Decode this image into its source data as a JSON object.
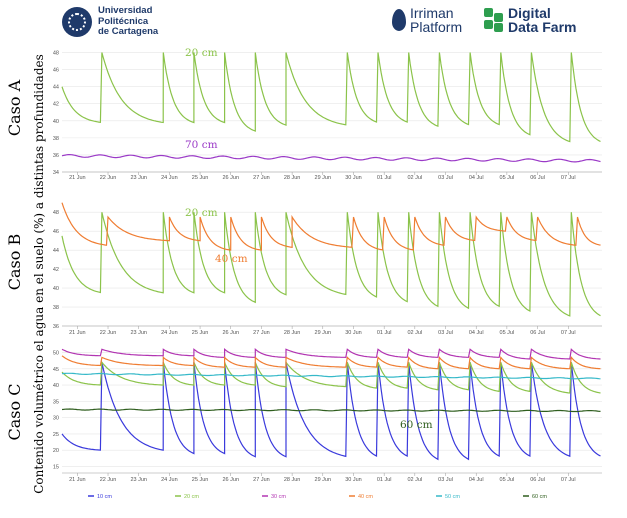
{
  "header": {
    "upct_lines": [
      "Universidad",
      "Politécnica",
      "de Cartagena"
    ],
    "irriman_lines": [
      "Irriman",
      "Platform"
    ],
    "ddf_lines": [
      "Digital",
      "Data Farm"
    ]
  },
  "y_title": "Contenido volumétrico el agua en el suelo (%) a distintas profundidades",
  "colors": {
    "10 cm": "#3a3adc",
    "20 cm": "#8bc34a",
    "30 cm": "#b235b2",
    "40 cm": "#ef7d32",
    "50 cm": "#36b9c9",
    "60 cm": "#2f5e1e",
    "70 cm": "#9a39c7"
  },
  "chart_data": [
    {
      "type": "line",
      "label": "Caso A",
      "x_ticks": [
        "21 Jun",
        "22 Jun",
        "23 Jun",
        "24 Jun",
        "25 Jun",
        "26 Jun",
        "27 Jun",
        "28 Jun",
        "29 Jun",
        "30 Jun",
        "01 Jul",
        "02 Jul",
        "03 Jul",
        "04 Jul",
        "05 Jul",
        "06 Jul",
        "07 Jul"
      ],
      "y_ticks": [
        34,
        36,
        38,
        40,
        42,
        44,
        46,
        48
      ],
      "ylim": [
        34,
        49
      ],
      "series": [
        {
          "name": "20 cm",
          "key": "20 cm",
          "annotation": "20 cm",
          "model": "sawtooth",
          "first": 44,
          "irrig": [
            1.3,
            3.3,
            4.3,
            5.3,
            6.3,
            7.3,
            9.3,
            10.3,
            11.3,
            12.3,
            13.3,
            14.3,
            15.3,
            16.6
          ],
          "high": 48,
          "low": [
            39.8,
            39.8,
            39.8,
            39.8,
            38.8,
            39.5,
            39.5,
            39.8,
            39.8,
            39.3,
            39.5,
            39.5,
            38.3,
            37.5
          ]
        },
        {
          "name": "70 cm",
          "key": "70 cm",
          "annotation": "70 cm",
          "model": "flat",
          "y0": 35.9,
          "y1": 35.3
        }
      ]
    },
    {
      "type": "line",
      "label": "Caso B",
      "x_ticks": [
        "21 Jun",
        "22 Jun",
        "23 Jun",
        "24 Jun",
        "25 Jun",
        "26 Jun",
        "27 Jun",
        "28 Jun",
        "29 Jun",
        "30 Jun",
        "01 Jul",
        "02 Jul",
        "03 Jul",
        "04 Jul",
        "05 Jul",
        "06 Jul",
        "07 Jul"
      ],
      "y_ticks": [
        36,
        38,
        40,
        42,
        44,
        46,
        48
      ],
      "ylim": [
        36,
        49.5
      ],
      "series": [
        {
          "name": "20 cm",
          "key": "20 cm",
          "annotation": "20 cm",
          "model": "sawtooth",
          "first": 45.5,
          "irrig": [
            1.3,
            3.3,
            4.3,
            5.3,
            6.3,
            7.3,
            9.3,
            10.3,
            11.3,
            12.3,
            13.3,
            14.3,
            15.3,
            16.6
          ],
          "high": 48,
          "low": [
            39.5,
            39.5,
            39.5,
            39.5,
            38.5,
            39.3,
            39.3,
            39,
            38.5,
            38,
            37.8,
            38,
            37.5,
            37
          ]
        },
        {
          "name": "40 cm",
          "key": "40 cm",
          "annotation": "40 cm",
          "model": "sawtooth",
          "first": 49,
          "irrig": [
            1.5,
            3.5,
            4.5,
            5.5,
            6.5,
            7.5,
            9.5,
            10.5,
            11.5,
            12.5,
            13.5,
            14.5,
            15.5,
            16.8
          ],
          "high": 47.5,
          "low": [
            44.5,
            45,
            45,
            44,
            44,
            44.3,
            44.3,
            44,
            44,
            44.5,
            45,
            46,
            45,
            44.5
          ]
        }
      ]
    },
    {
      "type": "line",
      "label": "Caso C",
      "x_ticks": [
        "21 Jun",
        "22 Jun",
        "23 Jun",
        "24 Jun",
        "25 Jun",
        "26 Jun",
        "27 Jun",
        "28 Jun",
        "29 Jun",
        "30 Jun",
        "01 Jul",
        "02 Jul",
        "03 Jul",
        "04 Jul",
        "05 Jul",
        "06 Jul",
        "07 Jul"
      ],
      "y_ticks": [
        15,
        20,
        25,
        30,
        35,
        40,
        45,
        50
      ],
      "ylim": [
        13,
        52
      ],
      "series": [
        {
          "name": "10 cm",
          "key": "10 cm",
          "model": "sawtooth",
          "first": 25,
          "irrig": [
            1.3,
            3.3,
            4.3,
            5.3,
            6.3,
            7.3,
            9.3,
            10.3,
            11.3,
            12.3,
            13.3,
            14.3,
            15.3,
            16.6
          ],
          "high": 47,
          "low": [
            20,
            20,
            19,
            19,
            18,
            18,
            18,
            18,
            18,
            17,
            17,
            18,
            18,
            18
          ]
        },
        {
          "name": "20 cm",
          "key": "20 cm",
          "model": "sawtooth",
          "first": 44,
          "irrig": [
            1.3,
            3.3,
            4.3,
            5.3,
            6.3,
            7.3,
            9.3,
            10.3,
            11.3,
            12.3,
            13.3,
            14.3,
            15.3,
            16.6
          ],
          "high": 47,
          "low": [
            40,
            40,
            40,
            40,
            40,
            39.5,
            39.5,
            39,
            39,
            38.5,
            38.5,
            38,
            38,
            37.5
          ]
        },
        {
          "name": "30 cm",
          "key": "30 cm",
          "model": "sawtooth",
          "first": 51,
          "irrig": [
            1.3,
            3.3,
            4.3,
            5.3,
            6.3,
            7.3,
            9.3,
            10.3,
            11.3,
            12.3,
            13.3,
            14.3,
            15.3,
            16.6
          ],
          "high": 51,
          "low": [
            49,
            49,
            49,
            48.5,
            48.5,
            48.5,
            48.5,
            48.5,
            48.5,
            48.5,
            48.5,
            48.5,
            48,
            48
          ]
        },
        {
          "name": "40 cm",
          "key": "40 cm",
          "model": "sawtooth",
          "first": 49,
          "irrig": [
            1.3,
            3.3,
            4.3,
            5.3,
            6.3,
            7.3,
            9.3,
            10.3,
            11.3,
            12.3,
            13.3,
            14.3,
            15.3,
            16.6
          ],
          "high": 48.5,
          "low": [
            46,
            46,
            46,
            45.5,
            45.5,
            45.5,
            45.5,
            45.5,
            45.5,
            45,
            45,
            45,
            45,
            45
          ]
        },
        {
          "name": "50 cm",
          "key": "50 cm",
          "model": "flat",
          "y0": 43.5,
          "y1": 42
        },
        {
          "name": "60 cm",
          "key": "60 cm",
          "annotation": "60 cm",
          "model": "flat",
          "y0": 32.5,
          "y1": 32
        }
      ]
    }
  ],
  "legend": [
    "10 cm",
    "20 cm",
    "30 cm",
    "40 cm",
    "50 cm",
    "60 cm"
  ]
}
